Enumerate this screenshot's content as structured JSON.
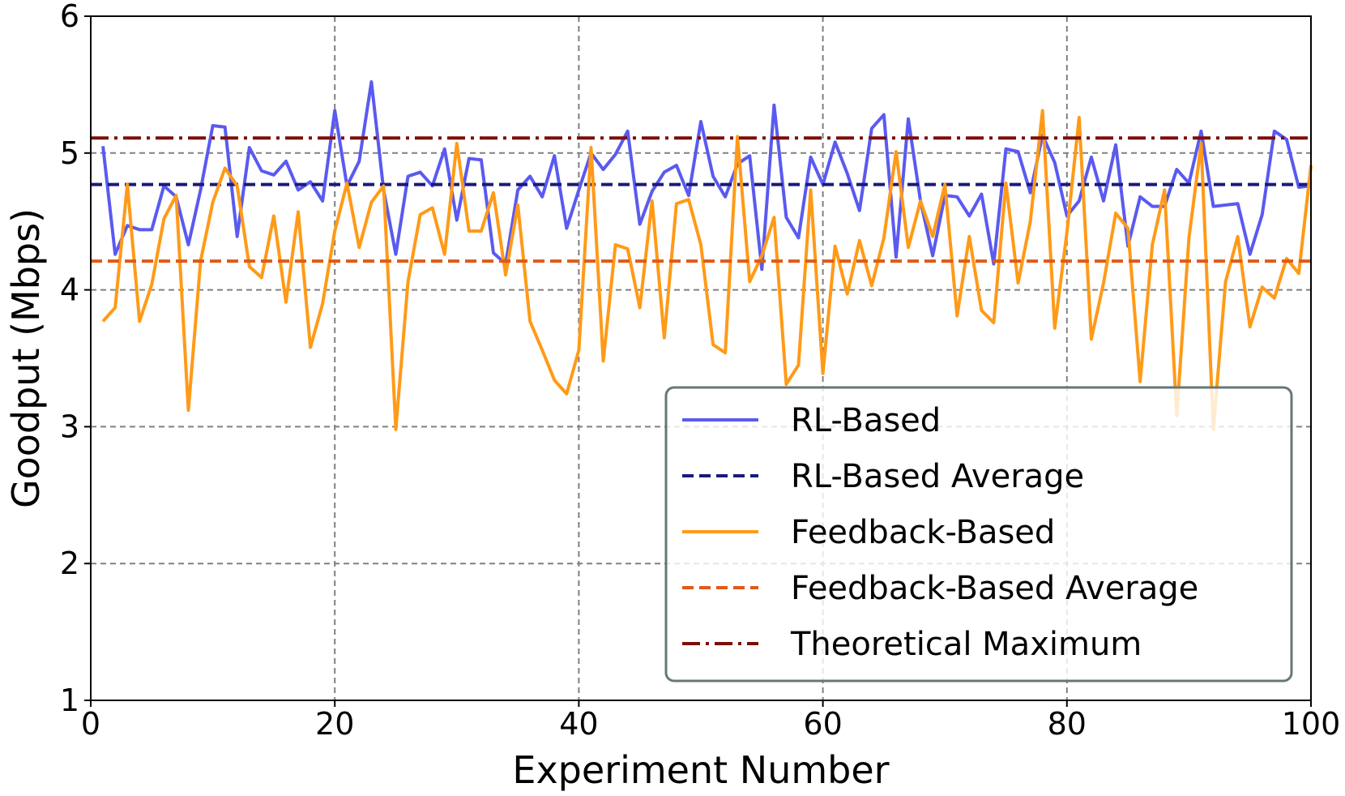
{
  "chart_data": {
    "type": "line",
    "title": "",
    "xlabel": "Experiment Number",
    "ylabel": "Goodput (Mbps)",
    "xlim": [
      0,
      100
    ],
    "ylim": [
      1,
      6
    ],
    "x_ticks": [
      0,
      20,
      40,
      60,
      80,
      100
    ],
    "y_ticks": [
      1,
      2,
      3,
      4,
      5,
      6
    ],
    "grid": true,
    "legend_position": "lower-right",
    "x": [
      1,
      2,
      3,
      4,
      5,
      6,
      7,
      8,
      9,
      10,
      11,
      12,
      13,
      14,
      15,
      16,
      17,
      18,
      19,
      20,
      21,
      22,
      23,
      24,
      25,
      26,
      27,
      28,
      29,
      30,
      31,
      32,
      33,
      34,
      35,
      36,
      37,
      38,
      39,
      40,
      41,
      42,
      43,
      44,
      45,
      46,
      47,
      48,
      49,
      50,
      51,
      52,
      53,
      54,
      55,
      56,
      57,
      58,
      59,
      60,
      61,
      62,
      63,
      64,
      65,
      66,
      67,
      68,
      69,
      70,
      71,
      72,
      73,
      74,
      75,
      76,
      77,
      78,
      79,
      80,
      81,
      82,
      83,
      84,
      85,
      86,
      87,
      88,
      89,
      90,
      91,
      92,
      93,
      94,
      95,
      96,
      97,
      98,
      99,
      100
    ],
    "series": [
      {
        "name": "RL-Based",
        "style": "solid",
        "color": "#5a5af0",
        "values": [
          5.05,
          4.26,
          4.47,
          4.44,
          4.44,
          4.76,
          4.68,
          4.33,
          4.73,
          5.2,
          5.19,
          4.39,
          5.04,
          4.87,
          4.84,
          4.94,
          4.73,
          4.79,
          4.65,
          5.31,
          4.76,
          4.94,
          5.52,
          4.73,
          4.26,
          4.83,
          4.86,
          4.76,
          5.03,
          4.51,
          4.96,
          4.95,
          4.27,
          4.19,
          4.73,
          4.83,
          4.68,
          4.98,
          4.45,
          4.73,
          5.0,
          4.88,
          4.99,
          5.16,
          4.48,
          4.72,
          4.86,
          4.91,
          4.69,
          5.23,
          4.83,
          4.68,
          4.92,
          4.98,
          4.15,
          5.35,
          4.53,
          4.38,
          4.97,
          4.77,
          5.08,
          4.85,
          4.58,
          5.18,
          5.28,
          4.24,
          5.25,
          4.65,
          4.25,
          4.69,
          4.68,
          4.54,
          4.7,
          4.19,
          5.03,
          5.01,
          4.71,
          5.13,
          4.93,
          4.54,
          4.65,
          4.97,
          4.65,
          5.06,
          4.32,
          4.68,
          4.61,
          4.61,
          4.88,
          4.78,
          5.16,
          4.61,
          4.62,
          4.63,
          4.26,
          4.55,
          5.16,
          5.1,
          4.75,
          4.76
        ]
      },
      {
        "name": "RL-Based Average",
        "style": "dashed",
        "color": "#1a1a7a",
        "constant": 4.77
      },
      {
        "name": "Feedback-Based",
        "style": "solid",
        "color": "#ff9a18",
        "values": [
          3.77,
          3.87,
          4.77,
          3.77,
          4.04,
          4.52,
          4.69,
          3.12,
          4.21,
          4.64,
          4.89,
          4.76,
          4.17,
          4.09,
          4.54,
          3.91,
          4.57,
          3.58,
          3.9,
          4.43,
          4.78,
          4.31,
          4.64,
          4.76,
          2.98,
          4.06,
          4.55,
          4.6,
          4.26,
          5.07,
          4.43,
          4.43,
          4.71,
          4.11,
          4.62,
          3.77,
          3.56,
          3.34,
          3.24,
          3.56,
          5.04,
          3.48,
          4.33,
          4.3,
          3.87,
          4.65,
          3.65,
          4.63,
          4.66,
          4.33,
          3.6,
          3.54,
          5.12,
          4.06,
          4.25,
          4.53,
          3.31,
          3.45,
          4.73,
          3.39,
          4.32,
          3.97,
          4.36,
          4.03,
          4.38,
          5.01,
          4.31,
          4.65,
          4.39,
          4.77,
          3.81,
          4.39,
          3.85,
          3.76,
          4.78,
          4.05,
          4.5,
          5.31,
          3.72,
          4.42,
          5.26,
          3.64,
          4.05,
          4.56,
          4.45,
          3.33,
          4.33,
          4.73,
          3.08,
          4.38,
          5.07,
          2.98,
          4.06,
          4.39,
          3.73,
          4.02,
          3.94,
          4.23,
          4.12,
          4.91
        ]
      },
      {
        "name": "Feedback-Based Average",
        "style": "dashed",
        "color": "#e05a18",
        "constant": 4.21
      },
      {
        "name": "Theoretical Maximum",
        "style": "dashdot",
        "color": "#7a1008",
        "constant": 5.11
      }
    ]
  }
}
